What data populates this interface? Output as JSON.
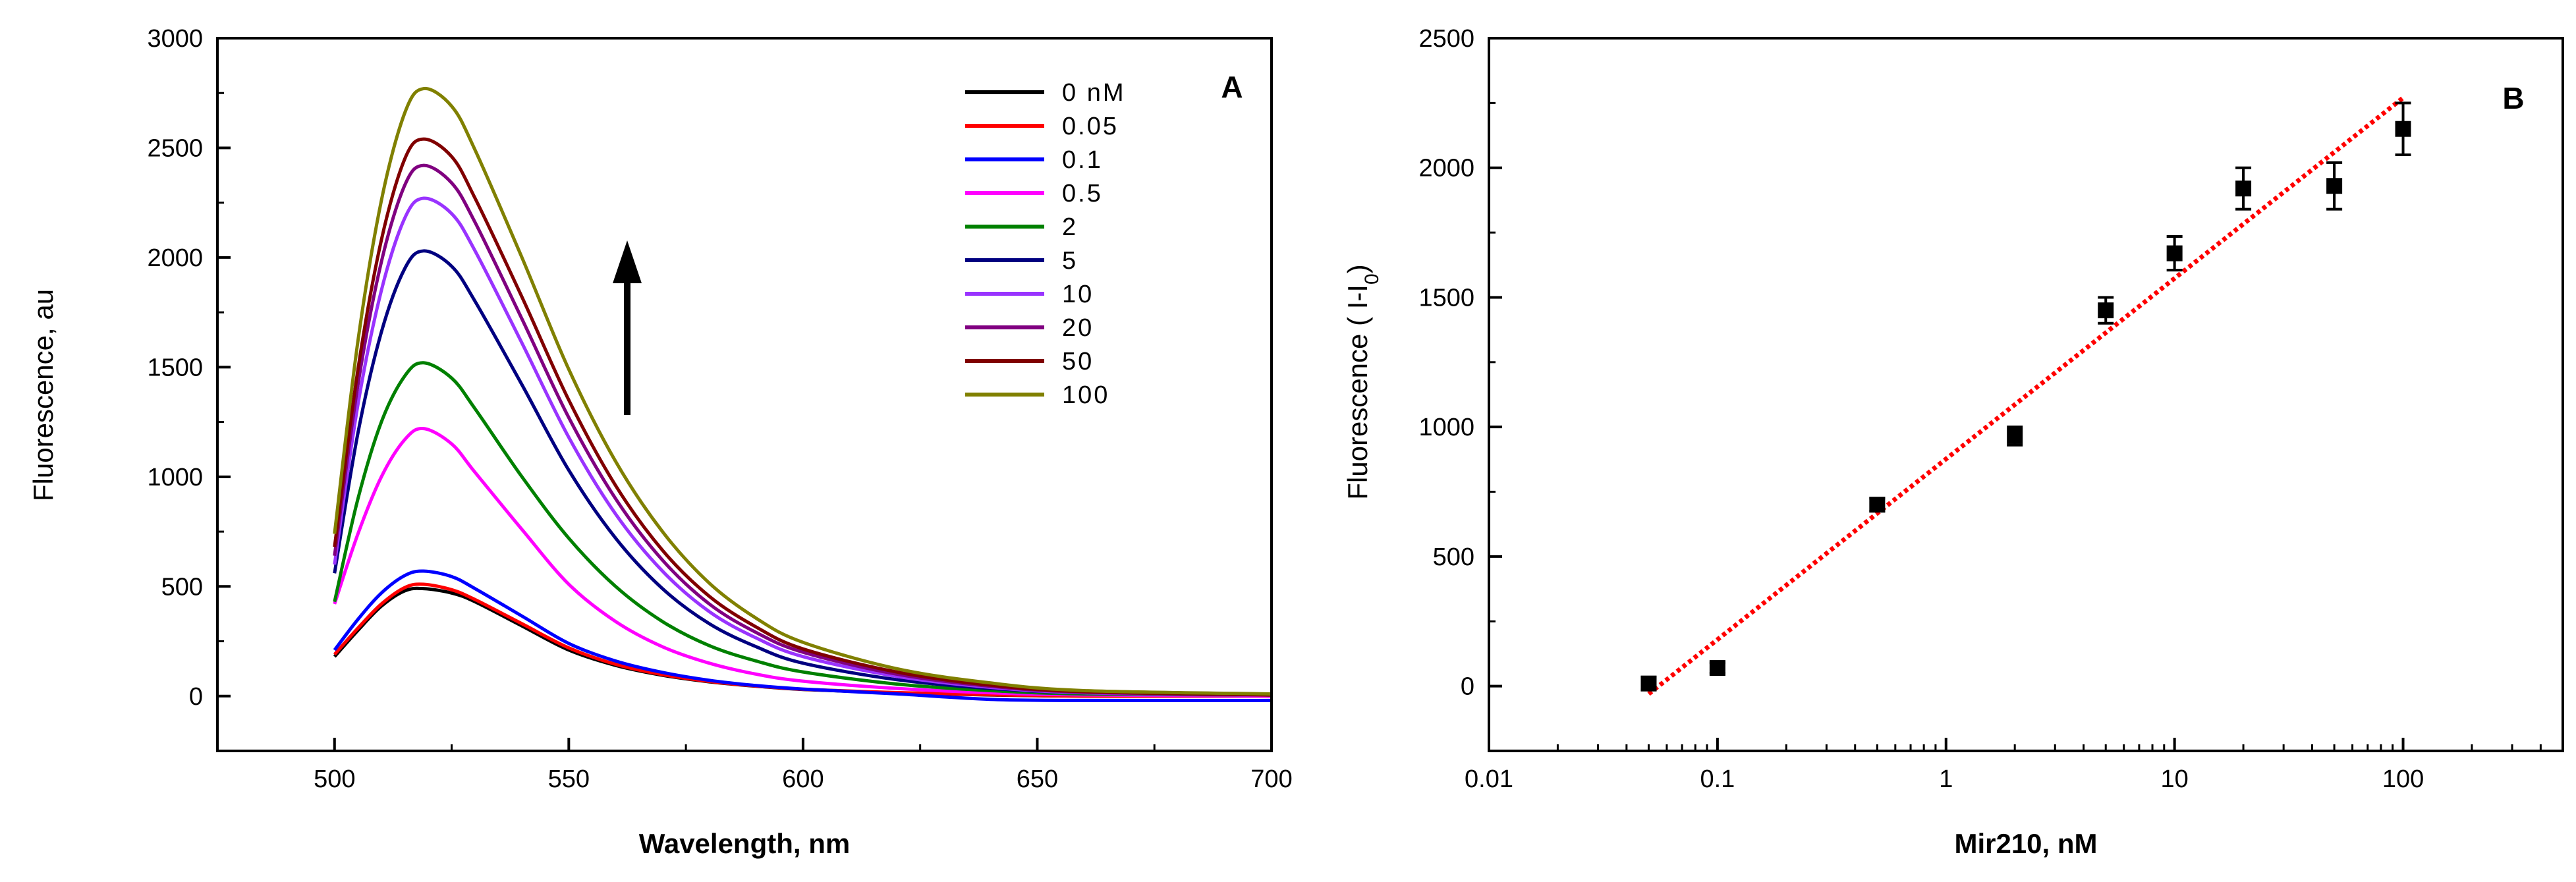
{
  "chart_data": [
    {
      "type": "line",
      "panel_label": "A",
      "xlabel": "Wavelength, nm",
      "ylabel": "Fluorescence, au",
      "xlim": [
        475,
        700
      ],
      "ylim": [
        -250,
        3000
      ],
      "xticks": [
        500,
        550,
        600,
        650,
        700
      ],
      "yticks": [
        0,
        500,
        1000,
        1500,
        2000,
        2500,
        3000
      ],
      "legend_position": "top-right",
      "annotation": "upward arrow indicating increasing concentration",
      "x": [
        500,
        505,
        510,
        515,
        519,
        525,
        530,
        540,
        550,
        560,
        570,
        580,
        590,
        600,
        620,
        640,
        660,
        700
      ],
      "series": [
        {
          "name": "0 nM",
          "color": "#000000",
          "values": [
            180,
            300,
            410,
            480,
            490,
            470,
            430,
            320,
            210,
            140,
            95,
            65,
            45,
            30,
            15,
            5,
            0,
            0
          ]
        },
        {
          "name": "0.05",
          "color": "#ff0000",
          "values": [
            190,
            310,
            420,
            495,
            510,
            485,
            440,
            330,
            220,
            145,
            98,
            67,
            46,
            31,
            16,
            6,
            0,
            0
          ]
        },
        {
          "name": "0.1",
          "color": "#0000ff",
          "values": [
            210,
            350,
            470,
            550,
            570,
            545,
            490,
            365,
            240,
            160,
            108,
            72,
            48,
            32,
            10,
            -15,
            -20,
            -20
          ]
        },
        {
          "name": "0.5",
          "color": "#ff00ff",
          "values": [
            420,
            740,
            1000,
            1170,
            1220,
            1150,
            1020,
            760,
            510,
            340,
            225,
            150,
            100,
            68,
            35,
            15,
            5,
            0
          ]
        },
        {
          "name": "2",
          "color": "#008000",
          "values": [
            430,
            900,
            1250,
            1460,
            1520,
            1450,
            1310,
            1000,
            720,
            500,
            340,
            230,
            160,
            110,
            55,
            25,
            10,
            5
          ]
        },
        {
          "name": "5",
          "color": "#000080",
          "values": [
            560,
            1200,
            1660,
            1950,
            2030,
            1960,
            1800,
            1420,
            1030,
            720,
            490,
            330,
            225,
            150,
            75,
            35,
            15,
            5
          ]
        },
        {
          "name": "10",
          "color": "#9933ff",
          "values": [
            600,
            1330,
            1850,
            2180,
            2270,
            2200,
            2030,
            1610,
            1180,
            830,
            570,
            385,
            265,
            180,
            90,
            40,
            15,
            5
          ]
        },
        {
          "name": "20",
          "color": "#800080",
          "values": [
            640,
            1420,
            1980,
            2330,
            2420,
            2340,
            2160,
            1720,
            1270,
            900,
            620,
            420,
            290,
            200,
            100,
            45,
            18,
            5
          ]
        },
        {
          "name": "50",
          "color": "#800000",
          "values": [
            680,
            1490,
            2080,
            2450,
            2540,
            2460,
            2270,
            1820,
            1350,
            960,
            665,
            455,
            315,
            215,
            110,
            50,
            20,
            5
          ]
        },
        {
          "name": "100",
          "color": "#808000",
          "values": [
            740,
            1620,
            2260,
            2660,
            2770,
            2690,
            2490,
            2000,
            1490,
            1070,
            750,
            515,
            355,
            245,
            125,
            60,
            25,
            10
          ]
        }
      ]
    },
    {
      "type": "scatter",
      "panel_label": "B",
      "xlabel": "Mir210, nM",
      "ylabel_main": "Fluorescence ( I-I",
      "ylabel_sub": "0",
      "ylabel_end": ")",
      "xscale": "log",
      "xlim": [
        0.01,
        500
      ],
      "ylim": [
        -250,
        2500
      ],
      "xticks": [
        0.01,
        0.1,
        1,
        10,
        100
      ],
      "xtick_labels": [
        "0.01",
        "0.1",
        "1",
        "10",
        "100"
      ],
      "yticks": [
        0,
        500,
        1000,
        1500,
        2000,
        2500
      ],
      "points": [
        {
          "x": 0.05,
          "y": 10,
          "err": 25
        },
        {
          "x": 0.1,
          "y": 70,
          "err": 20
        },
        {
          "x": 0.5,
          "y": 700,
          "err": 25
        },
        {
          "x": 2,
          "y": 965,
          "err": 35
        },
        {
          "x": 5,
          "y": 1450,
          "err": 50
        },
        {
          "x": 10,
          "y": 1670,
          "err": 65
        },
        {
          "x": 20,
          "y": 1920,
          "err": 80
        },
        {
          "x": 50,
          "y": 1930,
          "err": 90
        },
        {
          "x": 100,
          "y": 2150,
          "err": 100
        }
      ],
      "fit": {
        "x": [
          0.05,
          100
        ],
        "y": [
          -30,
          2270
        ],
        "color": "#ff0000",
        "style": "dotted"
      }
    }
  ]
}
